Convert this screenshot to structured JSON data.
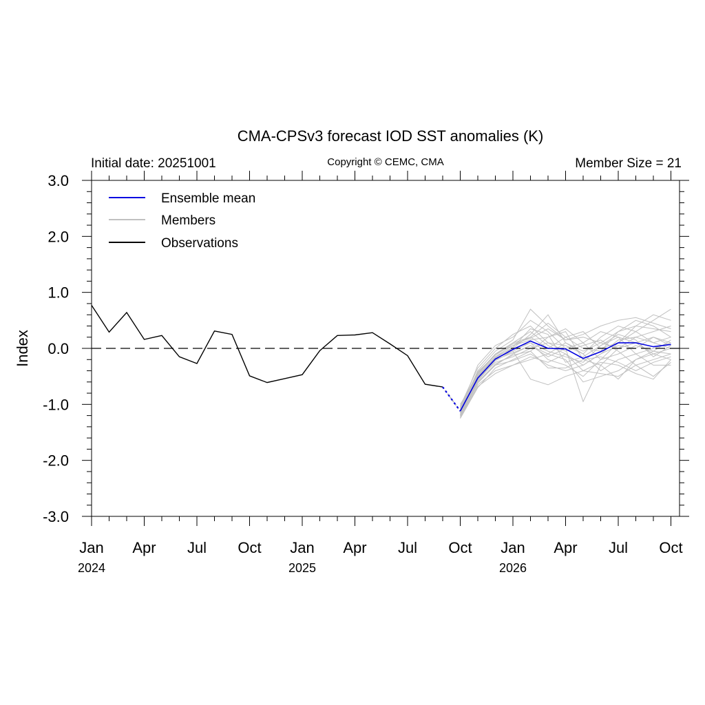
{
  "chart_data": {
    "type": "line",
    "title": "CMA-CPSv3 forecast IOD SST anomalies (K)",
    "initial_date_label": "Initial date: 20251001",
    "copyright": "Copyright © CEMC, CMA",
    "member_size_label": "Member Size = 21",
    "ylabel": "Index",
    "ylim": [
      -3.0,
      3.0
    ],
    "y_ticks": [
      "-3.0",
      "-2.0",
      "-1.0",
      "0.0",
      "1.0",
      "2.0",
      "3.0"
    ],
    "x_ticks": [
      "Jan",
      "Apr",
      "Jul",
      "Oct",
      "Jan",
      "Apr",
      "Jul",
      "Oct",
      "Jan",
      "Apr",
      "Jul",
      "Oct"
    ],
    "x_years": [
      "2024",
      "2025",
      "2026"
    ],
    "reference_line": 0.0,
    "legend": [
      "Ensemble mean",
      "Members",
      "Observations"
    ],
    "colors": {
      "ensemble_mean": "#0000e0",
      "members": "#c0c0c0",
      "observations": "#000000"
    },
    "observations": {
      "dates": [
        "2024-01",
        "2024-02",
        "2024-03",
        "2024-04",
        "2024-05",
        "2024-06",
        "2024-07",
        "2024-08",
        "2024-09",
        "2024-10",
        "2024-11",
        "2024-12",
        "2025-01",
        "2025-02",
        "2025-03",
        "2025-04",
        "2025-05",
        "2025-06",
        "2025-07",
        "2025-08",
        "2025-09"
      ],
      "values": [
        0.77,
        0.29,
        0.64,
        0.16,
        0.23,
        -0.15,
        -0.27,
        0.31,
        0.25,
        -0.49,
        -0.61,
        -0.54,
        -0.47,
        -0.04,
        0.23,
        0.24,
        0.28,
        0.08,
        -0.13,
        -0.64,
        -0.69
      ]
    },
    "ensemble_mean": {
      "dates": [
        "2025-10",
        "2025-11",
        "2025-12",
        "2026-01",
        "2026-02",
        "2026-03",
        "2026-04",
        "2026-05",
        "2026-06",
        "2026-07",
        "2026-08",
        "2026-09",
        "2026-10"
      ],
      "values": [
        -1.12,
        -0.53,
        -0.19,
        -0.02,
        0.13,
        0.0,
        -0.01,
        -0.18,
        -0.06,
        0.1,
        0.1,
        0.03,
        0.07
      ]
    },
    "members": {
      "dates": [
        "2025-10",
        "2025-11",
        "2025-12",
        "2026-01",
        "2026-02",
        "2026-03",
        "2026-04",
        "2026-05",
        "2026-06",
        "2026-07",
        "2026-08",
        "2026-09",
        "2026-10"
      ],
      "values": [
        [
          -1.05,
          -0.42,
          -0.12,
          0.1,
          0.3,
          0.05,
          -0.1,
          -0.3,
          -0.1,
          0.15,
          0.2,
          0.1,
          0.2
        ],
        [
          -1.2,
          -0.6,
          -0.3,
          -0.1,
          0.05,
          -0.1,
          0.1,
          -0.05,
          0.1,
          0.3,
          0.4,
          0.35,
          0.3
        ],
        [
          -1.25,
          -0.7,
          -0.35,
          -0.2,
          -0.05,
          0.2,
          0.3,
          -0.2,
          -0.3,
          0.0,
          0.1,
          -0.1,
          -0.2
        ],
        [
          -1.1,
          -0.3,
          0.05,
          0.2,
          0.5,
          0.3,
          0.0,
          0.1,
          0.3,
          0.2,
          -0.1,
          0.0,
          0.1
        ],
        [
          -1.0,
          -0.5,
          -0.2,
          0.0,
          0.1,
          -0.2,
          -0.3,
          -0.5,
          -0.2,
          0.1,
          0.3,
          0.5,
          0.7
        ],
        [
          -1.15,
          -0.55,
          -0.25,
          -0.15,
          0.0,
          0.1,
          0.05,
          -0.1,
          -0.4,
          -0.2,
          -0.1,
          -0.3,
          -0.3
        ],
        [
          -1.08,
          -0.45,
          -0.1,
          0.05,
          0.2,
          0.45,
          0.2,
          0.0,
          -0.05,
          0.3,
          0.5,
          0.4,
          0.2
        ],
        [
          -1.22,
          -0.65,
          -0.4,
          -0.3,
          -0.2,
          -0.1,
          -0.2,
          -0.6,
          -0.5,
          -0.4,
          -0.2,
          -0.1,
          0.0
        ],
        [
          -1.12,
          -0.4,
          -0.05,
          0.15,
          0.7,
          0.4,
          0.15,
          0.2,
          0.1,
          0.0,
          0.2,
          0.3,
          0.4
        ],
        [
          -1.18,
          -0.58,
          -0.22,
          -0.05,
          0.1,
          -0.05,
          -0.15,
          -0.25,
          0.05,
          0.2,
          0.1,
          0.2,
          0.05
        ],
        [
          -1.06,
          -0.48,
          -0.15,
          0.05,
          0.15,
          0.2,
          0.35,
          0.1,
          -0.2,
          -0.1,
          0.05,
          -0.05,
          -0.1
        ],
        [
          -1.2,
          -0.62,
          -0.3,
          -0.22,
          -0.1,
          -0.3,
          -0.4,
          -0.3,
          -0.1,
          0.05,
          0.0,
          0.2,
          0.1
        ],
        [
          -1.1,
          -0.5,
          -0.15,
          0.0,
          0.25,
          0.6,
          0.1,
          -0.1,
          0.2,
          0.4,
          0.3,
          0.1,
          0.0
        ],
        [
          -1.14,
          -0.56,
          -0.2,
          -0.08,
          0.05,
          -0.15,
          0.0,
          -0.95,
          -0.3,
          -0.55,
          -0.2,
          -0.05,
          0.15
        ],
        [
          -1.03,
          -0.35,
          0.0,
          0.25,
          0.4,
          0.1,
          -0.05,
          0.05,
          0.15,
          -0.05,
          -0.3,
          -0.2,
          -0.1
        ],
        [
          -1.24,
          -0.68,
          -0.45,
          -0.3,
          -0.15,
          -0.25,
          -0.1,
          -0.4,
          -0.25,
          -0.3,
          -0.45,
          -0.55,
          -0.2
        ],
        [
          -1.09,
          -0.44,
          -0.1,
          0.1,
          0.2,
          0.0,
          0.2,
          0.3,
          0.0,
          0.1,
          0.4,
          0.6,
          0.5
        ],
        [
          -1.16,
          -0.52,
          -0.18,
          -0.05,
          -0.55,
          -0.65,
          -0.5,
          -0.4,
          -0.45,
          -0.5,
          -0.3,
          -0.5,
          -0.25
        ],
        [
          -1.13,
          -0.49,
          -0.17,
          0.02,
          0.35,
          0.25,
          -0.25,
          -0.15,
          0.05,
          0.25,
          0.15,
          -0.15,
          0.05
        ],
        [
          -1.07,
          -0.46,
          -0.12,
          0.08,
          0.18,
          0.35,
          0.15,
          0.25,
          0.4,
          0.5,
          0.55,
          0.45,
          0.35
        ],
        [
          -1.19,
          -0.6,
          -0.28,
          -0.12,
          -0.05,
          -0.35,
          -0.35,
          -0.2,
          -0.15,
          -0.25,
          -0.4,
          -0.25,
          -0.15
        ]
      ]
    }
  }
}
